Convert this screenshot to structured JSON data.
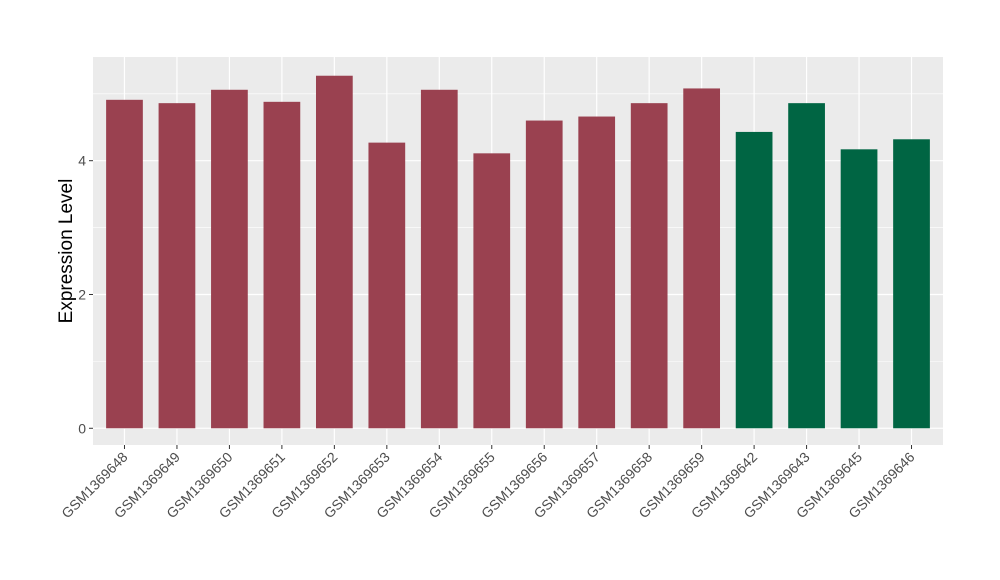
{
  "chart_data": {
    "type": "bar",
    "title": "",
    "xlabel": "",
    "ylabel": "Expression Level",
    "ylim": [
      -0.25,
      5.55
    ],
    "yticks": [
      0,
      2,
      4
    ],
    "grid": true,
    "legend": "none",
    "categories": [
      "GSM1369648",
      "GSM1369649",
      "GSM1369650",
      "GSM1369651",
      "GSM1369652",
      "GSM1369653",
      "GSM1369654",
      "GSM1369655",
      "GSM1369656",
      "GSM1369657",
      "GSM1369658",
      "GSM1369659",
      "GSM1369642",
      "GSM1369643",
      "GSM1369645",
      "GSM1369646"
    ],
    "values": [
      4.91,
      4.86,
      5.06,
      4.88,
      5.27,
      4.27,
      5.06,
      4.11,
      4.6,
      4.66,
      4.86,
      5.08,
      4.43,
      4.86,
      4.17,
      4.32
    ],
    "groups": [
      0,
      0,
      0,
      0,
      0,
      0,
      0,
      0,
      0,
      0,
      0,
      0,
      1,
      1,
      1,
      1
    ],
    "group_colors": [
      "#9a4150",
      "#006543"
    ],
    "panel_background": "#ebebeb",
    "grid_color": "#ffffff"
  }
}
